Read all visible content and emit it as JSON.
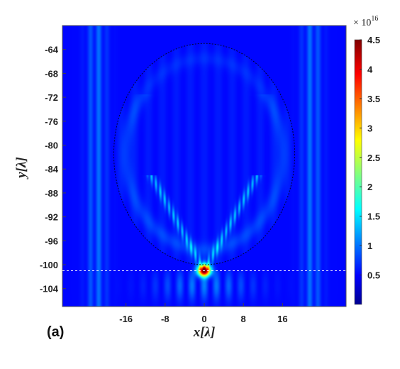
{
  "panel_label": "(a)",
  "chart_data": {
    "type": "heatmap",
    "xlabel": "x[λ]",
    "ylabel": "y[λ]",
    "xlim": [
      -29,
      29
    ],
    "ylim": [
      -107,
      -60
    ],
    "x_ticks": [
      -16,
      -8,
      0,
      8,
      16
    ],
    "x_tick_labels": [
      "-16",
      "-8",
      "0",
      "8",
      "16"
    ],
    "y_ticks": [
      -64,
      -68,
      -72,
      -76,
      -80,
      -84,
      -88,
      -92,
      -96,
      -100,
      -104
    ],
    "y_tick_labels": [
      "-64",
      "-68",
      "-72",
      "-76",
      "-80",
      "-84",
      "-88",
      "-92",
      "-96",
      "-100",
      "-104"
    ],
    "colorbar": {
      "multiplier_base": "× 10",
      "multiplier_exponent": "16",
      "range": [
        0,
        4.5
      ],
      "ticks": [
        0.5,
        1,
        1.5,
        2,
        2.5,
        3,
        3.5,
        4,
        4.5
      ],
      "tick_labels": [
        "0.5",
        "1",
        "1.5",
        "2",
        "2.5",
        "3",
        "3.5",
        "4",
        "4.5"
      ],
      "colormap": "jet"
    },
    "annotations": {
      "circle": {
        "center": [
          0,
          -81.5
        ],
        "radius": 18.5,
        "style": "dotted",
        "color": "#000000"
      },
      "interface_line": {
        "y": -101,
        "style": "dashed",
        "color": "#ffffff"
      }
    },
    "focus": {
      "x": 0,
      "y": -101,
      "peak": 4.5
    },
    "background_level": 0.15
  },
  "colors": {
    "background": "#ffffff",
    "jet_low": "#00008f",
    "jet_high": "#800000"
  }
}
